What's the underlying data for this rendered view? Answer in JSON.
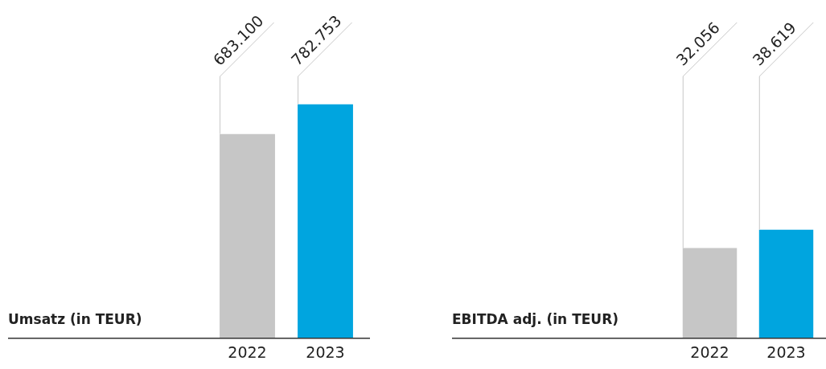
{
  "chart_data": [
    {
      "type": "bar",
      "title": "Umsatz (in TEUR)",
      "categories": [
        "2022",
        "2023"
      ],
      "values": [
        683100,
        782753
      ],
      "colors": [
        "#c6c6c6",
        "#00a5df"
      ],
      "value_labels": [
        "683.100",
        "782.753"
      ]
    },
    {
      "type": "bar",
      "title": "EBITDA adj. (in TEUR)",
      "categories": [
        "2022",
        "2023"
      ],
      "values": [
        32056,
        38619
      ],
      "colors": [
        "#c6c6c6",
        "#00a5df"
      ],
      "value_labels": [
        "32.056",
        "38.619"
      ]
    }
  ]
}
